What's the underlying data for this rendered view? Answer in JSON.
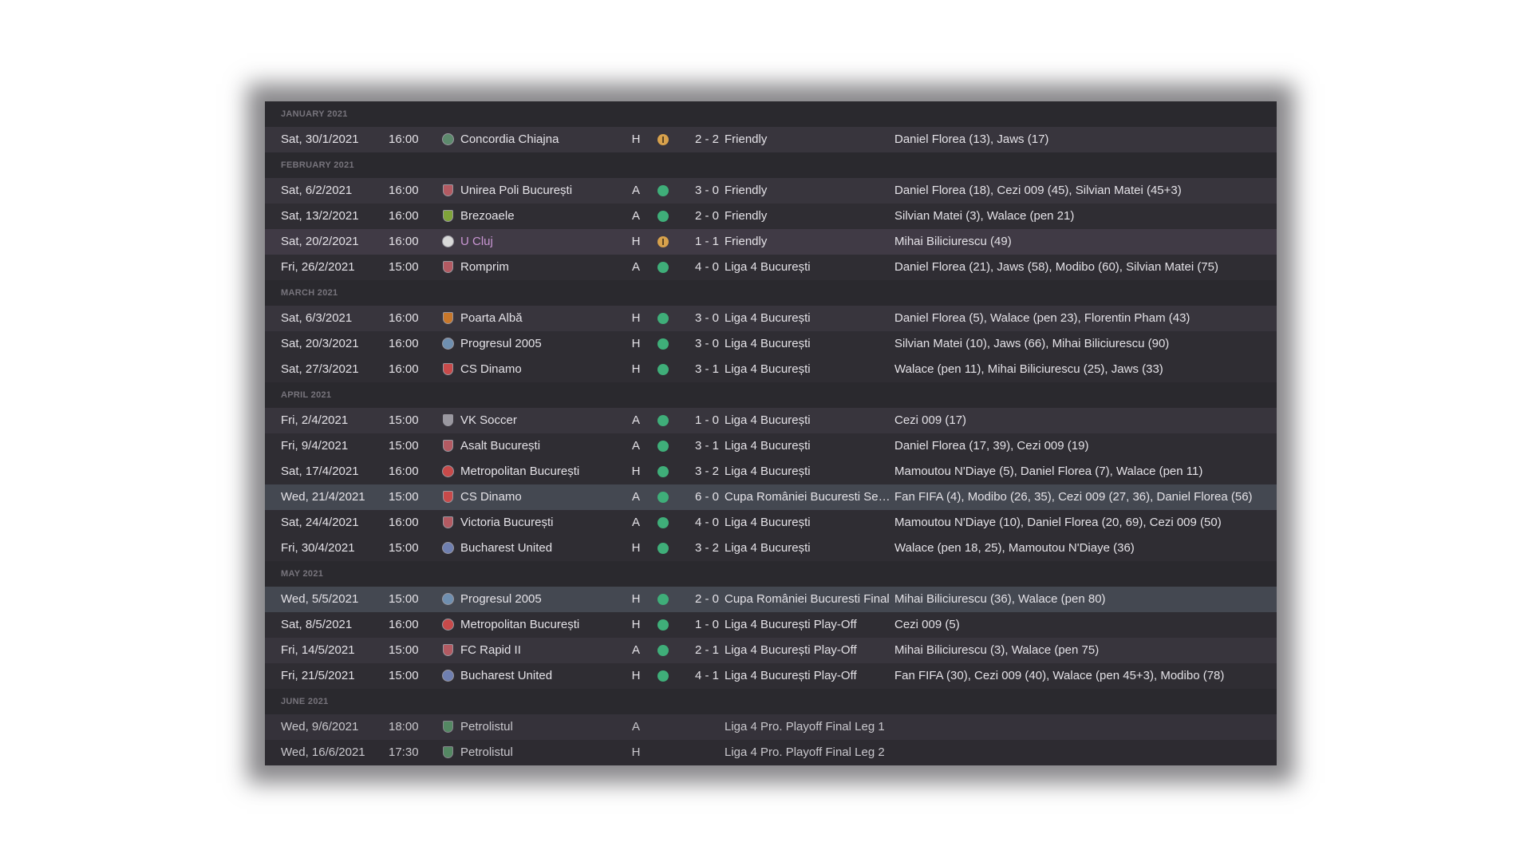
{
  "months": [
    {
      "label": "JANUARY 2021",
      "matches": [
        {
          "date": "Sat, 30/1/2021",
          "time": "16:00",
          "crest": "concordia-crest",
          "crest_color": "#5d8a6d",
          "opponent": "Concordia Chiajna",
          "venue": "H",
          "result": "draw",
          "score": "2 - 2",
          "competition": "Friendly",
          "goals": "Daniel Florea (13), Jaws (17)",
          "shade": "shade-a"
        }
      ]
    },
    {
      "label": "FEBRUARY 2021",
      "matches": [
        {
          "date": "Sat, 6/2/2021",
          "time": "16:00",
          "crest": "unirea-crest",
          "crest_color": "#b35a62",
          "opponent": "Unirea Poli București",
          "venue": "A",
          "result": "win",
          "score": "3 - 0",
          "competition": "Friendly",
          "goals": "Daniel Florea (18), Cezi 009 (45), Silvian Matei (45+3)",
          "shade": "shade-a"
        },
        {
          "date": "Sat, 13/2/2021",
          "time": "16:00",
          "crest": "brezoaele-crest",
          "crest_color": "#7fa33a",
          "opponent": "Brezoaele",
          "venue": "A",
          "result": "win",
          "score": "2 - 0",
          "competition": "Friendly",
          "goals": "Silvian Matei (3), Walace (pen 21)",
          "shade": "shade-b"
        },
        {
          "date": "Sat, 20/2/2021",
          "time": "16:00",
          "crest": "ucluj-crest",
          "crest_color": "#d9d9d9",
          "opponent": "U Cluj",
          "opponent_link": true,
          "venue": "H",
          "result": "draw",
          "score": "1 - 1",
          "competition": "Friendly",
          "goals": "Mihai Biliciurescu (49)",
          "shade": "shade-c"
        },
        {
          "date": "Fri, 26/2/2021",
          "time": "15:00",
          "crest": "romprim-crest",
          "crest_color": "#b35a62",
          "opponent": "Romprim",
          "venue": "A",
          "result": "win",
          "score": "4 - 0",
          "competition": "Liga 4 București",
          "goals": "Daniel Florea (21), Jaws (58), Modibo (60), Silvian Matei (75)",
          "shade": "shade-b"
        }
      ]
    },
    {
      "label": "MARCH 2021",
      "matches": [
        {
          "date": "Sat, 6/3/2021",
          "time": "16:00",
          "crest": "poarta-alba-crest",
          "crest_color": "#c8772a",
          "opponent": "Poarta Albă",
          "venue": "H",
          "result": "win",
          "score": "3 - 0",
          "competition": "Liga 4 București",
          "goals": "Daniel Florea (5), Walace (pen 23), Florentin Pham (43)",
          "shade": "shade-a"
        },
        {
          "date": "Sat, 20/3/2021",
          "time": "16:00",
          "crest": "progresul-crest",
          "crest_color": "#6f8fb0",
          "opponent": "Progresul 2005",
          "venue": "H",
          "result": "win",
          "score": "3 - 0",
          "competition": "Liga 4 București",
          "goals": "Silvian Matei (10), Jaws (66), Mihai Biliciurescu (90)",
          "shade": "shade-b"
        },
        {
          "date": "Sat, 27/3/2021",
          "time": "16:00",
          "crest": "cs-dinamo-crest",
          "crest_color": "#c84a4a",
          "opponent": "CS Dinamo",
          "venue": "H",
          "result": "win",
          "score": "3 - 1",
          "competition": "Liga 4 București",
          "goals": "Walace (pen 11), Mihai Biliciurescu (25), Jaws (33)",
          "shade": "shade-b"
        }
      ]
    },
    {
      "label": "APRIL 2021",
      "matches": [
        {
          "date": "Fri, 2/4/2021",
          "time": "15:00",
          "crest": "vk-soccer-crest",
          "crest_color": "#9a98a0",
          "opponent": "VK Soccer",
          "venue": "A",
          "result": "win",
          "score": "1 - 0",
          "competition": "Liga 4 București",
          "goals": "Cezi 009 (17)",
          "shade": "shade-a"
        },
        {
          "date": "Fri, 9/4/2021",
          "time": "15:00",
          "crest": "asalt-crest",
          "crest_color": "#b35a62",
          "opponent": "Asalt București",
          "venue": "A",
          "result": "win",
          "score": "3 - 1",
          "competition": "Liga 4 București",
          "goals": "Daniel Florea (17, 39), Cezi 009 (19)",
          "shade": "shade-b"
        },
        {
          "date": "Sat, 17/4/2021",
          "time": "16:00",
          "crest": "metropolitan-crest",
          "crest_color": "#c84a4a",
          "opponent": "Metropolitan București",
          "venue": "H",
          "result": "win",
          "score": "3 - 2",
          "competition": "Liga 4 București",
          "goals": "Mamoutou N'Diaye (5), Daniel Florea (7), Walace (pen 11)",
          "shade": "shade-b"
        },
        {
          "date": "Wed, 21/4/2021",
          "time": "15:00",
          "crest": "cs-dinamo-crest",
          "crest_color": "#c84a4a",
          "opponent": "CS Dinamo",
          "venue": "A",
          "result": "win",
          "score": "6 - 0",
          "competition": "Cupa României Bucuresti Se…",
          "goals": "Fan FIFA (4), Modibo (26, 35), Cezi 009 (27, 36), Daniel Florea (56)",
          "shade": "shade-hl"
        },
        {
          "date": "Sat, 24/4/2021",
          "time": "16:00",
          "crest": "victoria-crest",
          "crest_color": "#b35a62",
          "opponent": "Victoria București",
          "venue": "A",
          "result": "win",
          "score": "4 - 0",
          "competition": "Liga 4 București",
          "goals": "Mamoutou N'Diaye (10), Daniel Florea (20, 69), Cezi 009 (50)",
          "shade": "shade-b"
        },
        {
          "date": "Fri, 30/4/2021",
          "time": "15:00",
          "crest": "bucharest-united-crest",
          "crest_color": "#6f7fb0",
          "opponent": "Bucharest United",
          "venue": "H",
          "result": "win",
          "score": "3 - 2",
          "competition": "Liga 4 București",
          "goals": "Walace (pen 18, 25), Mamoutou N'Diaye (36)",
          "shade": "shade-b"
        }
      ]
    },
    {
      "label": "MAY 2021",
      "matches": [
        {
          "date": "Wed, 5/5/2021",
          "time": "15:00",
          "crest": "progresul-crest",
          "crest_color": "#6f8fb0",
          "opponent": "Progresul 2005",
          "venue": "H",
          "result": "win",
          "score": "2 - 0",
          "competition": "Cupa României Bucuresti Final",
          "goals": "Mihai Biliciurescu (36), Walace (pen 80)",
          "shade": "shade-hl"
        },
        {
          "date": "Sat, 8/5/2021",
          "time": "16:00",
          "crest": "metropolitan-crest",
          "crest_color": "#c84a4a",
          "opponent": "Metropolitan București",
          "venue": "H",
          "result": "win",
          "score": "1 - 0",
          "competition": "Liga 4 București Play-Off",
          "goals": "Cezi 009 (5)",
          "shade": "shade-b"
        },
        {
          "date": "Fri, 14/5/2021",
          "time": "15:00",
          "crest": "rapid-crest",
          "crest_color": "#b35a62",
          "opponent": "FC Rapid II",
          "venue": "A",
          "result": "win",
          "score": "2 - 1",
          "competition": "Liga 4 București Play-Off",
          "goals": "Mihai Biliciurescu (3), Walace (pen 75)",
          "shade": "shade-a"
        },
        {
          "date": "Fri, 21/5/2021",
          "time": "15:00",
          "crest": "bucharest-united-crest",
          "crest_color": "#6f7fb0",
          "opponent": "Bucharest United",
          "venue": "H",
          "result": "win",
          "score": "4 - 1",
          "competition": "Liga 4 București Play-Off",
          "goals": "Fan FIFA (30), Cezi 009 (40), Walace (pen 45+3), Modibo (78)",
          "shade": "shade-b"
        }
      ]
    },
    {
      "label": "JUNE 2021",
      "matches": [
        {
          "date": "Wed, 9/6/2021",
          "time": "18:00",
          "crest": "petrolistul-crest",
          "crest_color": "#5d9a6d",
          "opponent": "Petrolistul",
          "venue": "A",
          "result": "",
          "score": "",
          "competition": "Liga 4 Pro. Playoff Final Leg 1",
          "goals": "",
          "shade": "shade-a"
        },
        {
          "date": "Wed, 16/6/2021",
          "time": "17:30",
          "crest": "petrolistul-crest",
          "crest_color": "#5d9a6d",
          "opponent": "Petrolistul",
          "venue": "H",
          "result": "",
          "score": "",
          "competition": "Liga 4 Pro. Playoff Final Leg 2",
          "goals": "",
          "shade": "shade-b"
        }
      ]
    }
  ]
}
